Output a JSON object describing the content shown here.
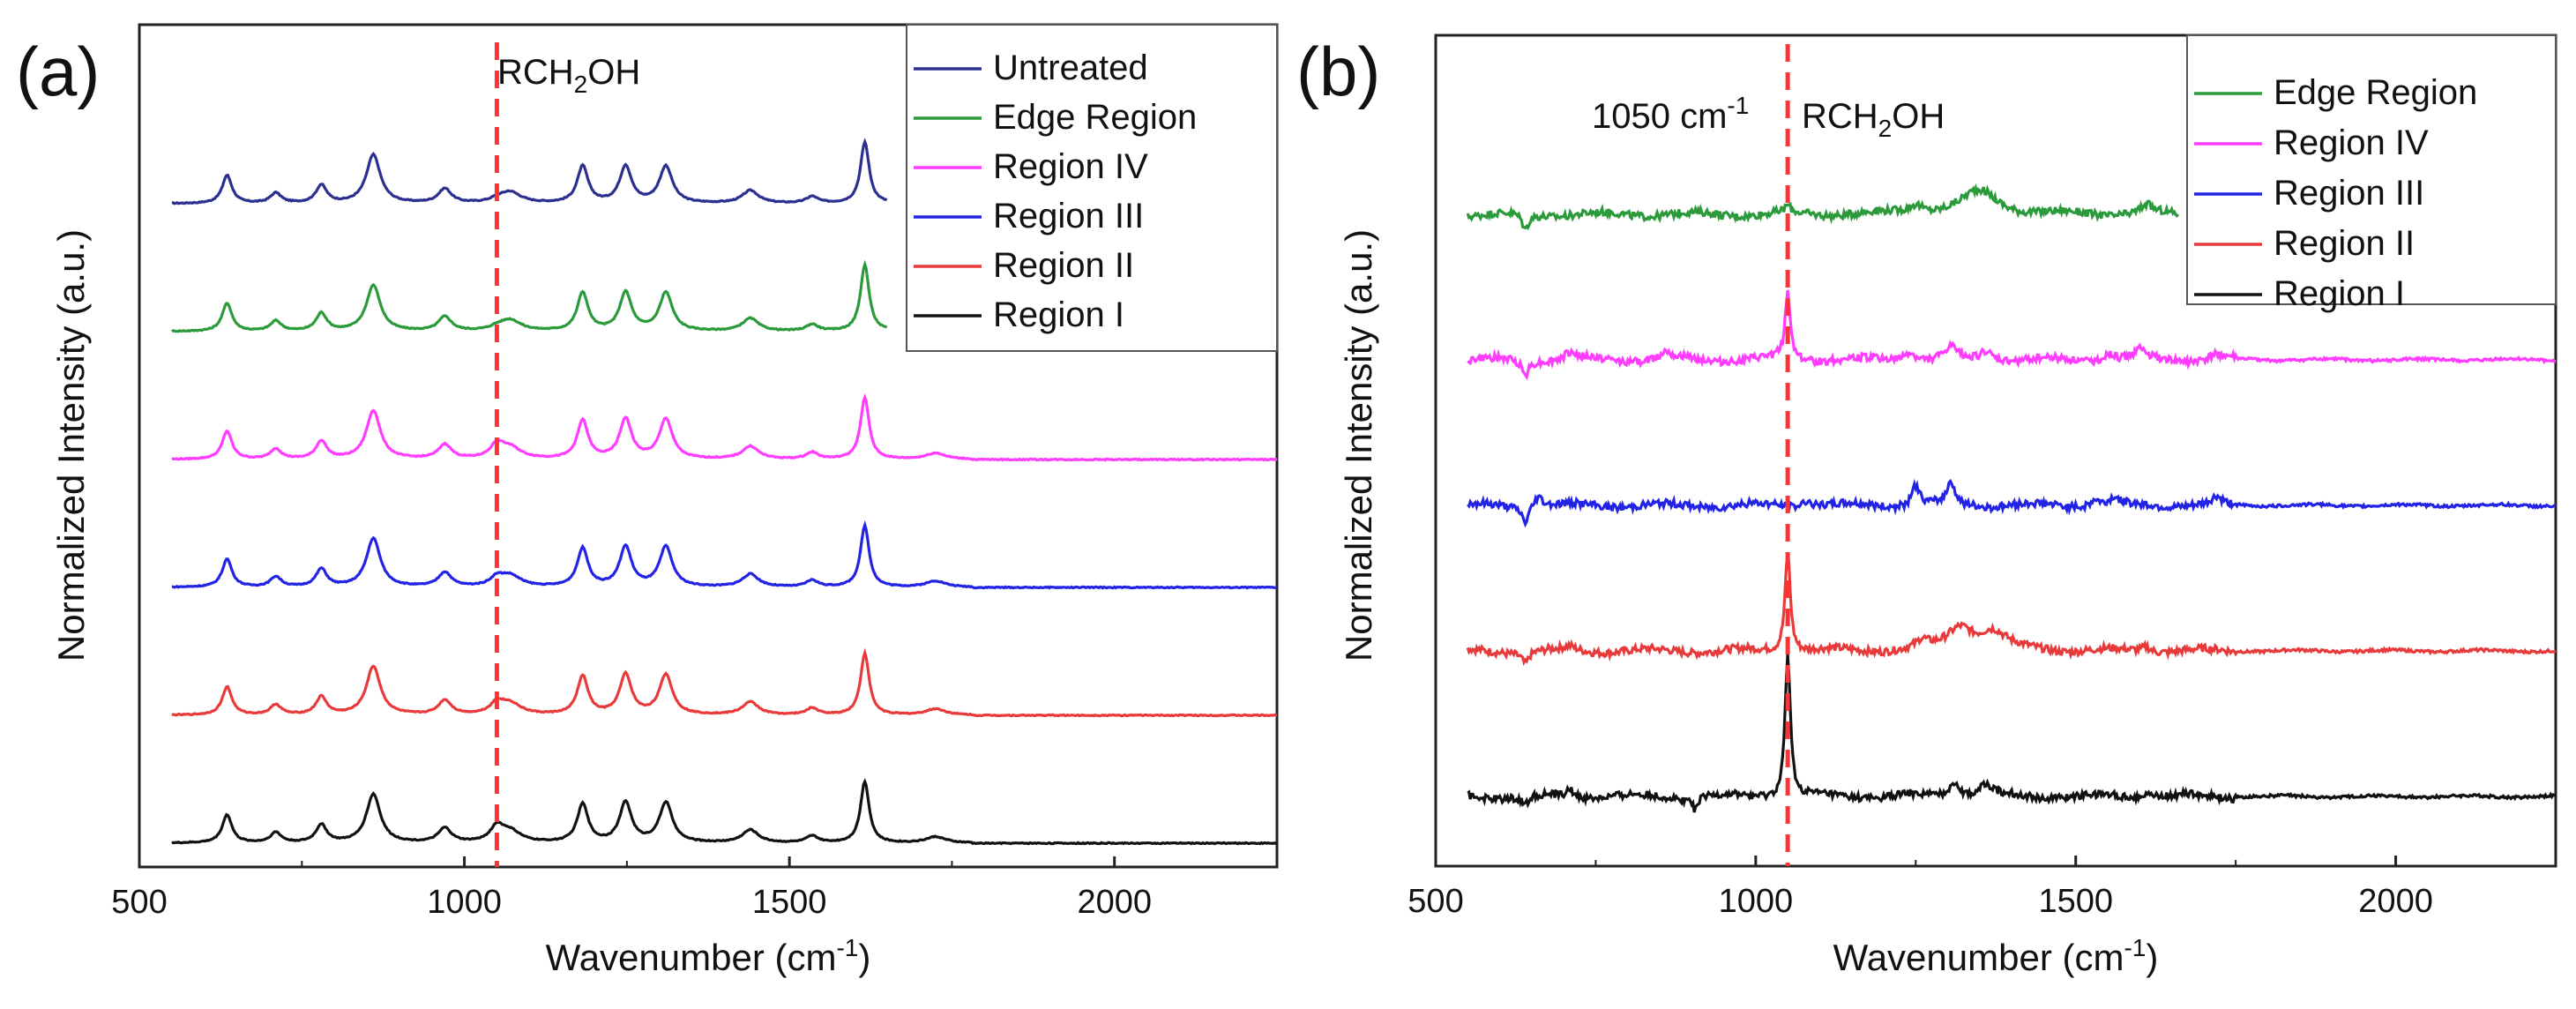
{
  "colors": {
    "untreated": "#2b2f8f",
    "edge": "#2a9a3a",
    "region4": "#ff3cff",
    "region3": "#2323e6",
    "region2": "#e83a3a",
    "region1": "#111111",
    "marker": "#ff3333"
  },
  "chart_data": [
    {
      "panel_label": "(a)",
      "type": "line",
      "xlabel": "Wavenumber (cm⁻¹)",
      "ylabel": "Normalized Intensity (a.u.)",
      "xlim": [
        500,
        2250
      ],
      "x_ticks": [
        "500",
        "1000",
        "1500",
        "2000"
      ],
      "x_tick_values": [
        500,
        1000,
        1500,
        2000
      ],
      "y_ticks": "none",
      "legend_position": "top-right",
      "marker_line": {
        "x": 1050,
        "style": "dashed",
        "label": "RCH₂OH"
      },
      "baseline_x": [
        550,
        2250
      ],
      "peaks": [
        {
          "center": 635,
          "width": 9
        },
        {
          "center": 710,
          "width": 10
        },
        {
          "center": 780,
          "width": 10
        },
        {
          "center": 860,
          "width": 13
        },
        {
          "center": 970,
          "width": 12
        },
        {
          "center": 1050,
          "width": 12
        },
        {
          "center": 1070,
          "width": 20
        },
        {
          "center": 1182,
          "width": 10
        },
        {
          "center": 1248,
          "width": 11
        },
        {
          "center": 1310,
          "width": 12
        },
        {
          "center": 1440,
          "width": 15
        },
        {
          "center": 1535,
          "width": 11
        },
        {
          "center": 1616,
          "width": 8
        },
        {
          "center": 1725,
          "width": 18
        }
      ],
      "series": [
        {
          "name": "Untreated",
          "color_key": "untreated",
          "offset": 5.0,
          "end_x": 1650,
          "peak_heights": [
            0.55,
            0.2,
            0.35,
            0.95,
            0.28,
            0.05,
            0.22,
            0.72,
            0.72,
            0.72,
            0.25,
            0.13,
            1.2,
            0.12
          ]
        },
        {
          "name": "Edge Region",
          "color_key": "edge",
          "offset": 4.0,
          "end_x": 1650,
          "peak_heights": [
            0.55,
            0.2,
            0.35,
            0.9,
            0.28,
            0.05,
            0.22,
            0.75,
            0.75,
            0.75,
            0.25,
            0.13,
            1.3,
            0.12
          ]
        },
        {
          "name": "Region IV",
          "color_key": "region4",
          "offset": 3.0,
          "end_x": 2250,
          "peak_heights": [
            0.55,
            0.2,
            0.35,
            0.95,
            0.28,
            0.25,
            0.22,
            0.75,
            0.78,
            0.78,
            0.25,
            0.13,
            1.2,
            0.12
          ]
        },
        {
          "name": "Region III",
          "color_key": "region3",
          "offset": 2.0,
          "end_x": 2250,
          "peak_heights": [
            0.55,
            0.2,
            0.35,
            0.95,
            0.28,
            0.15,
            0.22,
            0.75,
            0.78,
            0.78,
            0.25,
            0.13,
            1.2,
            0.12
          ]
        },
        {
          "name": "Region II",
          "color_key": "region2",
          "offset": 1.0,
          "end_x": 2250,
          "peak_heights": [
            0.55,
            0.2,
            0.35,
            0.95,
            0.28,
            0.2,
            0.22,
            0.75,
            0.78,
            0.78,
            0.25,
            0.13,
            1.2,
            0.12
          ]
        },
        {
          "name": "Region I",
          "color_key": "region1",
          "offset": 0.0,
          "end_x": 2250,
          "peak_heights": [
            0.55,
            0.2,
            0.35,
            0.95,
            0.28,
            0.28,
            0.22,
            0.75,
            0.78,
            0.78,
            0.25,
            0.13,
            1.2,
            0.12
          ]
        }
      ],
      "y_range": [
        -0.1,
        6.6
      ]
    },
    {
      "panel_label": "(b)",
      "type": "line",
      "xlabel": "Wavenumber (cm⁻¹)",
      "ylabel": "Normalized Intensity (a.u.)",
      "xlim": [
        500,
        2250
      ],
      "x_ticks": [
        "500",
        "1000",
        "1500",
        "2000"
      ],
      "x_tick_values": [
        500,
        1000,
        1500,
        2000
      ],
      "y_ticks": "none",
      "legend_position": "top-right",
      "marker_line": {
        "x": 1050,
        "style": "dashed",
        "label": "RCH₂OH",
        "annotation": "1050 cm⁻¹"
      },
      "baseline_x": [
        550,
        2250
      ],
      "series": [
        {
          "name": "Edge Region",
          "color_key": "edge",
          "offset": 4.0,
          "end_x": 1660,
          "features": [
            [
              640,
              -0.35,
              6
            ],
            [
              1050,
              0.15,
              5
            ],
            [
              1250,
              0.2,
              15
            ],
            [
              1350,
              0.5,
              35
            ],
            [
              1610,
              0.18,
              10
            ]
          ]
        },
        {
          "name": "Region IV",
          "color_key": "region4",
          "offset": 3.0,
          "end_x": 2250,
          "features": [
            [
              640,
              -0.3,
              6
            ],
            [
              710,
              0.15,
              10
            ],
            [
              860,
              0.18,
              10
            ],
            [
              1050,
              1.45,
              5
            ],
            [
              1240,
              0.2,
              10
            ],
            [
              1305,
              0.25,
              10
            ],
            [
              1360,
              0.2,
              10
            ],
            [
              1550,
              0.15,
              10
            ],
            [
              1600,
              0.2,
              10
            ],
            [
              1720,
              0.12,
              10
            ]
          ]
        },
        {
          "name": "Region III",
          "color_key": "region3",
          "offset": 2.0,
          "end_x": 2250,
          "features": [
            [
              640,
              -0.35,
              6
            ],
            [
              660,
              0.25,
              8
            ],
            [
              1080,
              0.15,
              8
            ],
            [
              1250,
              0.45,
              7
            ],
            [
              1305,
              0.5,
              7
            ],
            [
              1530,
              0.15,
              8
            ],
            [
              1560,
              0.15,
              8
            ],
            [
              1720,
              0.15,
              8
            ]
          ]
        },
        {
          "name": "Region II",
          "color_key": "region2",
          "offset": 1.0,
          "end_x": 2250,
          "features": [
            [
              640,
              -0.25,
              6
            ],
            [
              710,
              0.08,
              10
            ],
            [
              1050,
              2.2,
              5
            ],
            [
              1260,
              0.15,
              10
            ],
            [
              1320,
              0.5,
              25
            ],
            [
              1370,
              0.4,
              25
            ],
            [
              1610,
              0.12,
              8
            ]
          ]
        },
        {
          "name": "Region I",
          "color_key": "region1",
          "offset": 0.0,
          "end_x": 2250,
          "features": [
            [
              640,
              -0.2,
              6
            ],
            [
              710,
              0.15,
              8
            ],
            [
              905,
              -0.25,
              5
            ],
            [
              1050,
              3.1,
              5
            ],
            [
              1310,
              0.35,
              10
            ],
            [
              1360,
              0.25,
              12
            ],
            [
              1610,
              0.12,
              10
            ]
          ]
        }
      ],
      "y_range": [
        -0.5,
        6.3
      ]
    }
  ]
}
